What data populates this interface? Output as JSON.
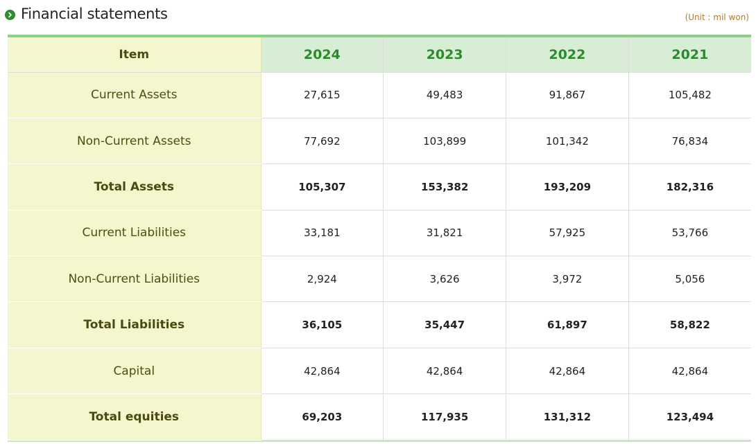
{
  "header": {
    "title": "Financial statements",
    "unit": "(Unit : mil won)"
  },
  "table": {
    "item_label": "Item",
    "years": [
      "2024",
      "2023",
      "2022",
      "2021"
    ],
    "rows": [
      {
        "label": "Current Assets",
        "values": [
          "27,615",
          "49,483",
          "91,867",
          "105,482"
        ],
        "bold": false
      },
      {
        "label": "Non-Current Assets",
        "values": [
          "77,692",
          "103,899",
          "101,342",
          "76,834"
        ],
        "bold": false
      },
      {
        "label": "Total Assets",
        "values": [
          "105,307",
          "153,382",
          "193,209",
          "182,316"
        ],
        "bold": true
      },
      {
        "label": "Current Liabilities",
        "values": [
          "33,181",
          "31,821",
          "57,925",
          "53,766"
        ],
        "bold": false
      },
      {
        "label": "Non-Current Liabilities",
        "values": [
          "2,924",
          "3,626",
          "3,972",
          "5,056"
        ],
        "bold": false
      },
      {
        "label": "Total Liabilities",
        "values": [
          "36,105",
          "35,447",
          "61,897",
          "58,822"
        ],
        "bold": true
      },
      {
        "label": "Capital",
        "values": [
          "42,864",
          "42,864",
          "42,864",
          "42,864"
        ],
        "bold": false
      },
      {
        "label": "Total equities",
        "values": [
          "69,203",
          "117,935",
          "131,312",
          "123,494"
        ],
        "bold": true
      }
    ]
  },
  "colors": {
    "accent_green": "#2e8b2e",
    "header_green_bg": "#d9edd6",
    "item_column_bg": "#f4f6cd",
    "unit_text": "#b07a36"
  }
}
